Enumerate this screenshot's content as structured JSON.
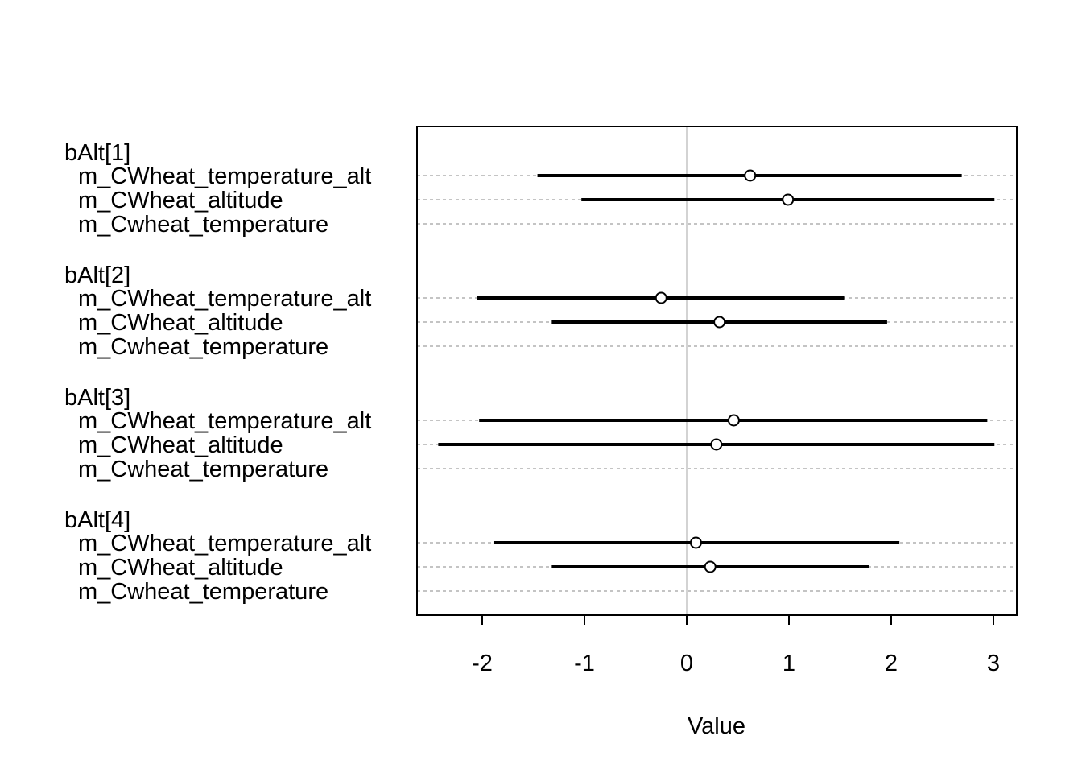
{
  "chart_data": {
    "type": "coefficient-interval",
    "title": "",
    "xlabel": "Value",
    "ylabel": "",
    "xlim": [
      -2.6,
      3.2
    ],
    "xticks": [
      -2,
      -1,
      0,
      1,
      2,
      3
    ],
    "xtick_labels": [
      "-2",
      "-1",
      "0",
      "1",
      "2",
      "3"
    ],
    "reference_line": 0,
    "grid": "dotted horizontal guides per row",
    "groups": [
      {
        "name": "bAlt[1]",
        "rows": [
          {
            "model": "m_CWheat_temperature_alt",
            "mean": 0.62,
            "lower": -1.46,
            "upper": 2.69
          },
          {
            "model": "m_CWheat_altitude",
            "mean": 0.99,
            "lower": -1.03,
            "upper": 3.01
          },
          {
            "model": "m_Cwheat_temperature",
            "mean": null,
            "lower": null,
            "upper": null
          }
        ]
      },
      {
        "name": "bAlt[2]",
        "rows": [
          {
            "model": "m_CWheat_temperature_alt",
            "mean": -0.25,
            "lower": -2.05,
            "upper": 1.54
          },
          {
            "model": "m_CWheat_altitude",
            "mean": 0.32,
            "lower": -1.32,
            "upper": 1.96
          },
          {
            "model": "m_Cwheat_temperature",
            "mean": null,
            "lower": null,
            "upper": null
          }
        ]
      },
      {
        "name": "bAlt[3]",
        "rows": [
          {
            "model": "m_CWheat_temperature_alt",
            "mean": 0.46,
            "lower": -2.03,
            "upper": 2.94
          },
          {
            "model": "m_CWheat_altitude",
            "mean": 0.29,
            "lower": -2.43,
            "upper": 3.01
          },
          {
            "model": "m_Cwheat_temperature",
            "mean": null,
            "lower": null,
            "upper": null
          }
        ]
      },
      {
        "name": "bAlt[4]",
        "rows": [
          {
            "model": "m_CWheat_temperature_alt",
            "mean": 0.09,
            "lower": -1.89,
            "upper": 2.08
          },
          {
            "model": "m_CWheat_altitude",
            "mean": 0.23,
            "lower": -1.32,
            "upper": 1.78
          },
          {
            "model": "m_Cwheat_temperature",
            "mean": null,
            "lower": null,
            "upper": null
          }
        ]
      }
    ]
  }
}
